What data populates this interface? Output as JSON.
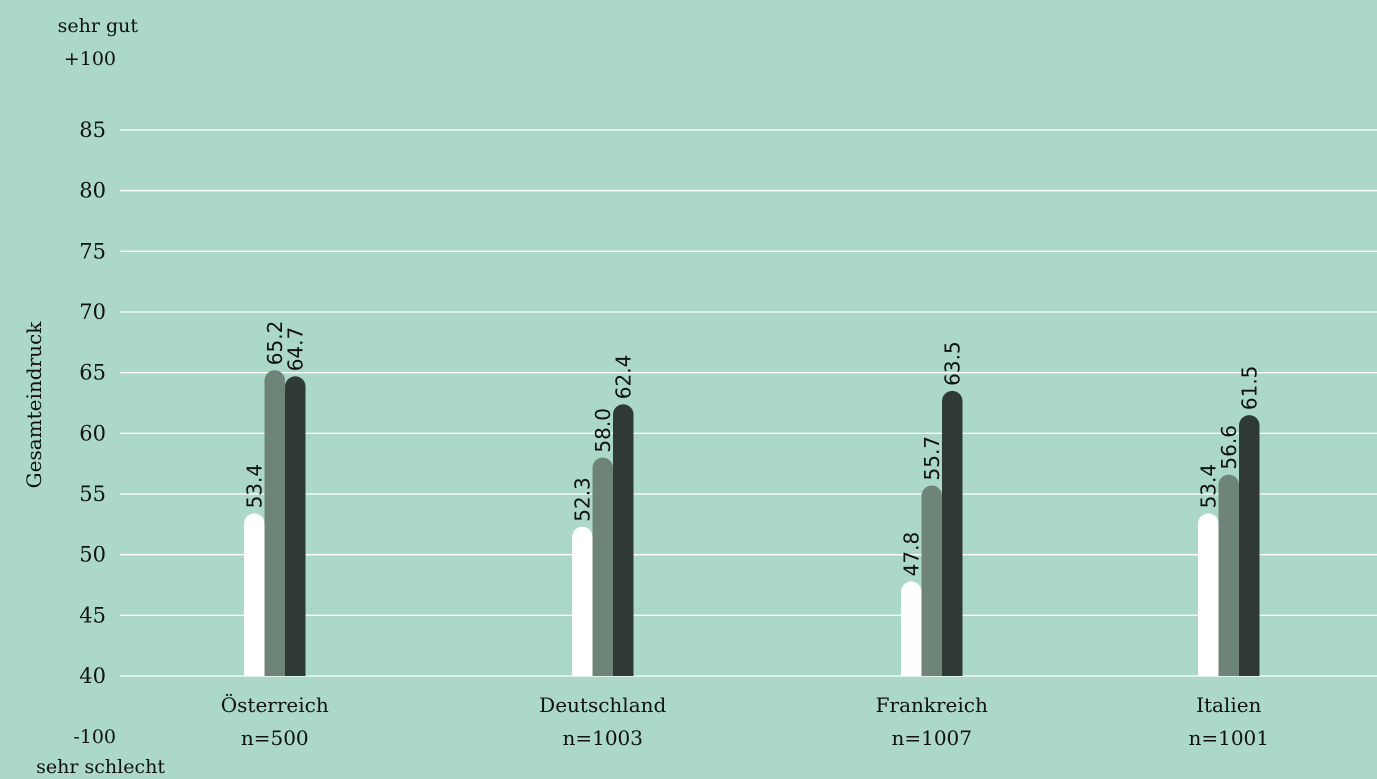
{
  "chart_data": {
    "type": "bar",
    "ylabel": "Gesamteindruck",
    "y_top_label": [
      "sehr gut",
      "+100"
    ],
    "y_bottom_label": [
      "-100",
      "sehr schlecht"
    ],
    "ylim": [
      40,
      85
    ],
    "yticks": [
      85,
      80,
      75,
      70,
      65,
      60,
      55,
      50,
      45,
      40
    ],
    "grid": true,
    "categories": [
      "Österreich",
      "Deutschland",
      "Frankreich",
      "Italien"
    ],
    "category_n": [
      "n=500",
      "n=1003",
      "n=1007",
      "n=1001"
    ],
    "series": [
      {
        "values": [
          53.4,
          52.3,
          47.8,
          53.4
        ],
        "labels": [
          "53.4",
          "52.3",
          "47.8",
          "53.4"
        ],
        "color": "#ffffff"
      },
      {
        "values": [
          65.2,
          58.0,
          55.7,
          56.6
        ],
        "labels": [
          "65.2",
          "58.0",
          "55.7",
          "56.6"
        ],
        "color": "#6f8479"
      },
      {
        "values": [
          64.7,
          62.4,
          63.5,
          61.5
        ],
        "labels": [
          "64.7",
          "62.4",
          "63.5",
          "61.5"
        ],
        "color": "#2f3935"
      }
    ]
  }
}
